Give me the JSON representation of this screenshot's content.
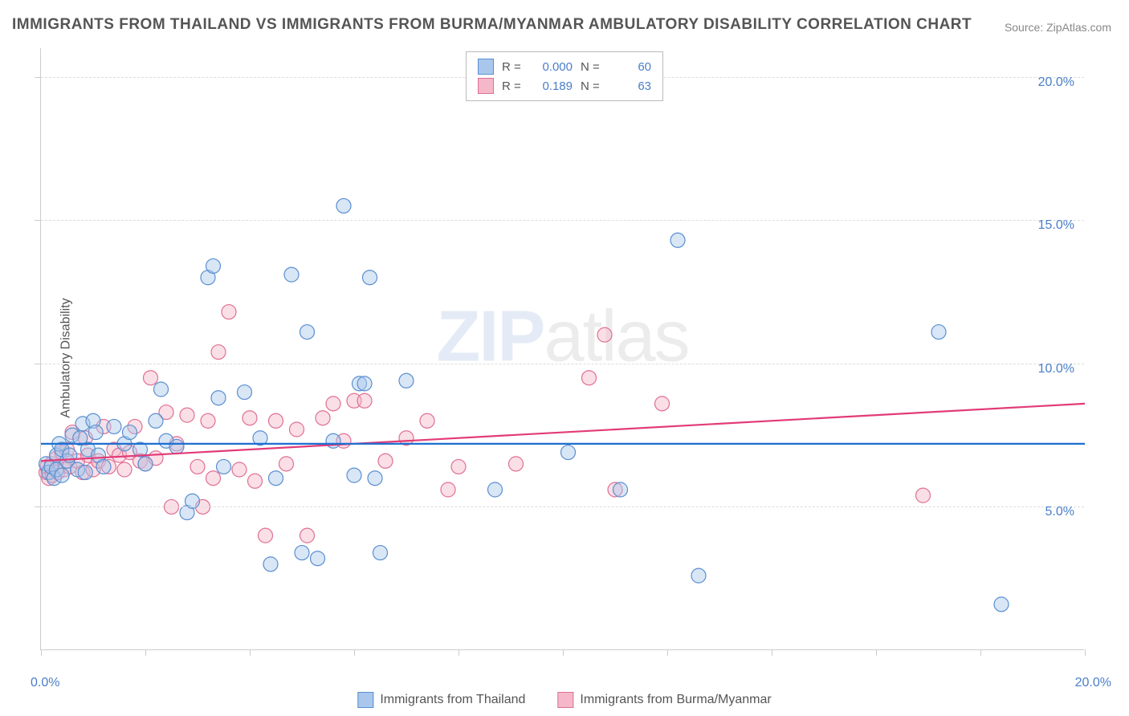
{
  "title": "IMMIGRANTS FROM THAILAND VS IMMIGRANTS FROM BURMA/MYANMAR AMBULATORY DISABILITY CORRELATION CHART",
  "source": "Source: ZipAtlas.com",
  "watermark_zip": "ZIP",
  "watermark_atlas": "atlas",
  "ylabel": "Ambulatory Disability",
  "chart": {
    "type": "scatter",
    "xlim": [
      0,
      20
    ],
    "ylim": [
      0,
      21
    ],
    "x_ticks": [
      0,
      2,
      4,
      6,
      8,
      10,
      12,
      14,
      16,
      18,
      20
    ],
    "y_gridlines": [
      5,
      10,
      15,
      20
    ],
    "x_axis_labels": [
      {
        "val": 0.0,
        "text": "0.0%"
      },
      {
        "val": 20.0,
        "text": "20.0%"
      }
    ],
    "y_axis_labels": [
      {
        "val": 5.0,
        "text": "5.0%"
      },
      {
        "val": 10.0,
        "text": "10.0%"
      },
      {
        "val": 15.0,
        "text": "15.0%"
      },
      {
        "val": 20.0,
        "text": "20.0%"
      }
    ],
    "background_color": "#ffffff",
    "grid_color": "#dddddd",
    "axis_color": "#cccccc",
    "marker_radius": 9,
    "marker_stroke_width": 1.2,
    "marker_opacity": 0.45,
    "line_width": 2.2,
    "series": [
      {
        "name": "Immigrants from Thailand",
        "fill": "#a9c7ec",
        "stroke": "#5a8fd0",
        "line_color": "#1f6fd0",
        "R_label": "R =",
        "R": "0.000",
        "N_label": "N =",
        "N": "60",
        "trend": {
          "y_start": 7.2,
          "y_end": 7.2
        },
        "points": [
          [
            0.1,
            6.5
          ],
          [
            0.15,
            6.2
          ],
          [
            0.2,
            6.4
          ],
          [
            0.25,
            6.0
          ],
          [
            0.3,
            6.8
          ],
          [
            0.3,
            6.3
          ],
          [
            0.35,
            7.2
          ],
          [
            0.4,
            6.1
          ],
          [
            0.4,
            7.0
          ],
          [
            0.5,
            6.6
          ],
          [
            0.55,
            6.8
          ],
          [
            0.6,
            7.5
          ],
          [
            0.7,
            6.3
          ],
          [
            0.75,
            7.4
          ],
          [
            0.8,
            7.9
          ],
          [
            0.85,
            6.2
          ],
          [
            0.9,
            7.0
          ],
          [
            1.0,
            8.0
          ],
          [
            1.05,
            7.6
          ],
          [
            1.1,
            6.8
          ],
          [
            1.2,
            6.4
          ],
          [
            1.4,
            7.8
          ],
          [
            1.6,
            7.2
          ],
          [
            1.7,
            7.6
          ],
          [
            1.9,
            7.0
          ],
          [
            2.0,
            6.5
          ],
          [
            2.2,
            8.0
          ],
          [
            2.3,
            9.1
          ],
          [
            2.4,
            7.3
          ],
          [
            2.6,
            7.1
          ],
          [
            2.8,
            4.8
          ],
          [
            2.9,
            5.2
          ],
          [
            3.2,
            13.0
          ],
          [
            3.3,
            13.4
          ],
          [
            3.4,
            8.8
          ],
          [
            3.5,
            6.4
          ],
          [
            3.9,
            9.0
          ],
          [
            4.2,
            7.4
          ],
          [
            4.4,
            3.0
          ],
          [
            4.5,
            6.0
          ],
          [
            4.8,
            13.1
          ],
          [
            5.0,
            3.4
          ],
          [
            5.1,
            11.1
          ],
          [
            5.3,
            3.2
          ],
          [
            5.6,
            7.3
          ],
          [
            5.8,
            15.5
          ],
          [
            6.0,
            6.1
          ],
          [
            6.1,
            9.3
          ],
          [
            6.2,
            9.3
          ],
          [
            6.3,
            13.0
          ],
          [
            6.4,
            6.0
          ],
          [
            6.5,
            3.4
          ],
          [
            8.7,
            5.6
          ],
          [
            10.1,
            6.9
          ],
          [
            11.1,
            5.6
          ],
          [
            12.2,
            14.3
          ],
          [
            12.6,
            2.6
          ],
          [
            17.2,
            11.1
          ],
          [
            18.4,
            1.6
          ],
          [
            7.0,
            9.4
          ]
        ]
      },
      {
        "name": "Immigrants from Burma/Myanmar",
        "fill": "#f4b8c8",
        "stroke": "#e06f94",
        "line_color": "#e23b77",
        "R_label": "R =",
        "R": "0.189",
        "N_label": "N =",
        "N": "63",
        "trend": {
          "y_start": 6.6,
          "y_end": 8.6
        },
        "points": [
          [
            0.1,
            6.2
          ],
          [
            0.12,
            6.4
          ],
          [
            0.15,
            6.0
          ],
          [
            0.2,
            6.5
          ],
          [
            0.22,
            6.1
          ],
          [
            0.3,
            6.7
          ],
          [
            0.32,
            6.2
          ],
          [
            0.4,
            6.9
          ],
          [
            0.45,
            6.3
          ],
          [
            0.5,
            7.0
          ],
          [
            0.55,
            6.4
          ],
          [
            0.6,
            7.6
          ],
          [
            0.7,
            6.6
          ],
          [
            0.8,
            6.2
          ],
          [
            0.85,
            7.4
          ],
          [
            0.9,
            6.8
          ],
          [
            1.0,
            6.3
          ],
          [
            1.1,
            6.6
          ],
          [
            1.2,
            7.8
          ],
          [
            1.3,
            6.4
          ],
          [
            1.4,
            7.0
          ],
          [
            1.5,
            6.8
          ],
          [
            1.6,
            6.3
          ],
          [
            1.8,
            7.8
          ],
          [
            1.9,
            6.6
          ],
          [
            2.0,
            6.5
          ],
          [
            2.1,
            9.5
          ],
          [
            2.2,
            6.7
          ],
          [
            2.4,
            8.3
          ],
          [
            2.5,
            5.0
          ],
          [
            2.6,
            7.2
          ],
          [
            2.8,
            8.2
          ],
          [
            3.0,
            6.4
          ],
          [
            3.1,
            5.0
          ],
          [
            3.2,
            8.0
          ],
          [
            3.3,
            6.0
          ],
          [
            3.4,
            10.4
          ],
          [
            3.6,
            11.8
          ],
          [
            3.8,
            6.3
          ],
          [
            4.0,
            8.1
          ],
          [
            4.1,
            5.9
          ],
          [
            4.3,
            4.0
          ],
          [
            4.5,
            8.0
          ],
          [
            4.7,
            6.5
          ],
          [
            4.9,
            7.7
          ],
          [
            5.1,
            4.0
          ],
          [
            5.4,
            8.1
          ],
          [
            5.6,
            8.6
          ],
          [
            5.8,
            7.3
          ],
          [
            6.0,
            8.7
          ],
          [
            6.2,
            8.7
          ],
          [
            6.6,
            6.6
          ],
          [
            7.0,
            7.4
          ],
          [
            7.4,
            8.0
          ],
          [
            7.8,
            5.6
          ],
          [
            9.1,
            6.5
          ],
          [
            10.5,
            9.5
          ],
          [
            10.8,
            11.0
          ],
          [
            11.0,
            5.6
          ],
          [
            11.9,
            8.6
          ],
          [
            16.9,
            5.4
          ],
          [
            8.0,
            6.4
          ],
          [
            1.7,
            6.9
          ]
        ]
      }
    ]
  },
  "legend_bottom": [
    {
      "swatch_fill": "#a9c7ec",
      "swatch_stroke": "#5a8fd0",
      "label": "Immigrants from Thailand"
    },
    {
      "swatch_fill": "#f4b8c8",
      "swatch_stroke": "#e06f94",
      "label": "Immigrants from Burma/Myanmar"
    }
  ]
}
